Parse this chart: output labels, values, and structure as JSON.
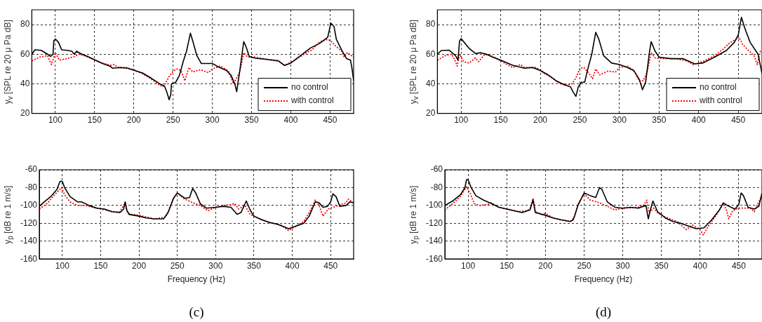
{
  "chart_data": [
    {
      "type": "line",
      "ylabel": "y$_{v}$ [SPL re 20 μ Pa dB]",
      "xlim": [
        70,
        480
      ],
      "ylim": [
        20,
        90
      ],
      "xticks": [
        100,
        150,
        200,
        250,
        300,
        350,
        400,
        450
      ],
      "yticks": [
        20,
        40,
        60,
        80
      ],
      "grid": true,
      "legend": "bottom right",
      "series": [
        {
          "name": "no control",
          "color": "#000000",
          "line_style": "solid",
          "x": [
            70,
            74,
            82,
            90,
            94,
            97,
            98,
            100,
            104,
            108,
            115,
            121,
            124,
            127,
            132,
            141,
            151,
            160,
            170,
            173,
            182,
            192,
            201,
            211,
            223,
            233,
            239,
            242,
            245,
            247,
            248,
            253,
            258,
            263,
            267,
            272,
            275,
            280,
            286,
            292,
            300,
            308,
            318,
            324,
            329,
            331,
            335,
            340,
            343,
            347,
            355,
            368,
            384,
            392,
            400,
            412,
            425,
            437,
            447,
            451,
            455,
            458,
            465,
            471,
            476,
            478,
            480
          ],
          "values": [
            60,
            63,
            62.6,
            60,
            58.5,
            60,
            69,
            70.3,
            68,
            63,
            62.6,
            62,
            60,
            62,
            60.5,
            58.5,
            56,
            53.7,
            51.8,
            50.5,
            51,
            50.5,
            49,
            47.3,
            43.5,
            40,
            38.4,
            34.4,
            29.2,
            32.7,
            40,
            40.8,
            45.6,
            55.3,
            61.8,
            74.2,
            69,
            59.4,
            53.7,
            53.7,
            53.7,
            51.3,
            49,
            45.6,
            39.2,
            34.7,
            49,
            68.5,
            65,
            58.5,
            57.3,
            56.6,
            55.6,
            52.4,
            54,
            58.9,
            64.2,
            67.4,
            71.5,
            81,
            78.7,
            70,
            62.6,
            57,
            56,
            50,
            42
          ]
        },
        {
          "name": "with control",
          "color": "#ff0000",
          "line_style": "dotted",
          "x": [
            70,
            80,
            90,
            95,
            98,
            100,
            105,
            115,
            125,
            130,
            140,
            150,
            160,
            170,
            175,
            180,
            190,
            200,
            210,
            220,
            230,
            237,
            240,
            245,
            250,
            255,
            260,
            265,
            270,
            275,
            285,
            295,
            300,
            310,
            320,
            327,
            335,
            340,
            345,
            355,
            370,
            385,
            392,
            402,
            417,
            427,
            437,
            447,
            451,
            458,
            465,
            468,
            472,
            480
          ],
          "values": [
            55.5,
            58,
            59,
            53,
            58,
            61,
            56,
            57,
            58.5,
            60,
            58.5,
            56,
            54,
            52.5,
            53,
            51,
            51,
            49.5,
            47,
            44,
            40,
            38,
            40,
            45,
            48.5,
            50,
            49,
            42,
            51,
            48,
            49.5,
            47.5,
            50,
            52,
            49,
            40,
            48,
            61,
            58,
            58,
            56.5,
            55,
            52.5,
            55,
            60,
            63,
            68.5,
            70,
            69,
            65,
            62,
            58,
            61,
            58
          ]
        }
      ]
    },
    {
      "type": "line",
      "ylabel": "y$_{v}$ [SPL re 20 μ Pa dB]",
      "xlim": [
        70,
        480
      ],
      "ylim": [
        20,
        90
      ],
      "xticks": [
        100,
        150,
        200,
        250,
        300,
        350,
        400,
        450
      ],
      "yticks": [
        20,
        40,
        60,
        80
      ],
      "grid": true,
      "legend": "bottom right",
      "series": [
        {
          "name": "no control",
          "color": "#000000",
          "line_style": "solid",
          "x": [
            70,
            75,
            85,
            93,
            96,
            98,
            100,
            110,
            118,
            125,
            132,
            140,
            150,
            165,
            180,
            190,
            200,
            210,
            220,
            230,
            238,
            242,
            245,
            248,
            252,
            256,
            260,
            265,
            270,
            274,
            280,
            290,
            300,
            310,
            318,
            325,
            329,
            333,
            338,
            340,
            345,
            350,
            365,
            380,
            395,
            405,
            420,
            435,
            445,
            450,
            454,
            458,
            465,
            475,
            480
          ],
          "values": [
            60,
            62.5,
            62.7,
            59,
            56,
            69,
            70.5,
            64,
            60.5,
            61,
            60,
            58,
            56,
            52.5,
            50.5,
            51,
            49,
            46,
            42,
            39.5,
            38,
            34,
            31.5,
            38,
            41,
            41,
            50,
            60,
            74.8,
            70,
            59,
            54,
            53,
            51,
            49,
            43,
            36,
            41,
            62,
            68.5,
            62,
            58,
            57,
            57,
            53.5,
            54,
            58,
            62.5,
            68,
            73,
            85,
            78,
            68,
            60,
            47
          ]
        },
        {
          "name": "with control",
          "color": "#ff0000",
          "line_style": "dotted",
          "x": [
            70,
            80,
            88,
            92,
            95,
            98,
            103,
            110,
            118,
            122,
            130,
            140,
            150,
            165,
            175,
            180,
            195,
            205,
            215,
            225,
            232,
            240,
            245,
            250,
            255,
            260,
            266,
            270,
            275,
            285,
            295,
            300,
            310,
            318,
            325,
            330,
            335,
            340,
            345,
            355,
            370,
            385,
            393,
            405,
            420,
            430,
            440,
            447,
            451,
            455,
            462,
            470,
            474,
            478,
            480
          ],
          "values": [
            56,
            59,
            60,
            56,
            52,
            60,
            55,
            54,
            57.5,
            55,
            60,
            58.5,
            55.5,
            51,
            53,
            51,
            51,
            47,
            44,
            40,
            39,
            40,
            44,
            50.5,
            51,
            48,
            43.5,
            50,
            46,
            48.5,
            48,
            51,
            52,
            49,
            42,
            42,
            48,
            61,
            57.5,
            57,
            57,
            55.5,
            53,
            55,
            59,
            63,
            68,
            70,
            71.5,
            67,
            63,
            59,
            53,
            62,
            62
          ]
        }
      ]
    },
    {
      "type": "line",
      "xlabel": "Frequency (Hz)",
      "ylabel": "y$_{p}$ [dB re 1 m/s]",
      "xlim": [
        70,
        480
      ],
      "ylim": [
        -160,
        -60
      ],
      "xticks": [
        100,
        150,
        200,
        250,
        300,
        350,
        400,
        450
      ],
      "yticks": [
        -160,
        -140,
        -120,
        -100,
        -80,
        -60
      ],
      "grid": true,
      "annotations": [
        "(c)"
      ],
      "series": [
        {
          "color": "#000000",
          "line_style": "solid",
          "x": [
            70,
            75,
            85,
            93,
            97,
            100,
            103,
            110,
            120,
            125,
            135,
            145,
            155,
            165,
            175,
            180,
            182,
            184,
            187,
            200,
            210,
            220,
            232,
            238,
            245,
            250,
            255,
            260,
            266,
            270,
            274,
            280,
            288,
            300,
            310,
            320,
            328,
            333,
            340,
            345,
            350,
            360,
            370,
            380,
            390,
            395,
            405,
            415,
            422,
            430,
            435,
            440,
            446,
            450,
            453,
            457,
            462,
            470,
            475,
            480
          ],
          "values": [
            -101,
            -97,
            -90,
            -82,
            -73,
            -73,
            -80,
            -90,
            -96,
            -96,
            -100,
            -103,
            -104,
            -107,
            -108,
            -104,
            -96,
            -105,
            -110,
            -112,
            -114,
            -115,
            -115,
            -108,
            -92,
            -86,
            -89,
            -92,
            -91,
            -81,
            -86,
            -98,
            -103,
            -102,
            -101,
            -102,
            -110,
            -108,
            -95,
            -105,
            -112,
            -116,
            -119,
            -121,
            -124,
            -126,
            -123,
            -120,
            -112,
            -96,
            -97,
            -102,
            -101,
            -96,
            -87,
            -90,
            -101,
            -100,
            -96,
            -97
          ]
        },
        {
          "color": "#ff0000",
          "line_style": "dotted",
          "x": [
            70,
            80,
            90,
            99,
            103,
            110,
            120,
            130,
            140,
            150,
            165,
            175,
            182,
            185,
            190,
            200,
            220,
            235,
            245,
            250,
            258,
            270,
            280,
            290,
            300,
            310,
            320,
            325,
            330,
            338,
            345,
            355,
            370,
            385,
            395,
            405,
            415,
            422,
            430,
            435,
            440,
            447,
            460,
            470,
            473,
            480
          ],
          "values": [
            -104,
            -98,
            -88,
            -80,
            -88,
            -96,
            -100,
            -100,
            -102,
            -104,
            -107,
            -107,
            -97,
            -108,
            -110,
            -111,
            -115,
            -113,
            -92,
            -86,
            -92,
            -97,
            -100,
            -106,
            -102,
            -100,
            -99,
            -98,
            -104,
            -100,
            -110,
            -114,
            -119,
            -122,
            -128,
            -123,
            -118,
            -108,
            -94,
            -100,
            -112,
            -104,
            -100,
            -97,
            -93,
            -97
          ]
        }
      ]
    },
    {
      "type": "line",
      "xlabel": "Frequency (Hz)",
      "ylabel": "y$_{p}$ [dB re 1 m/s]",
      "xlim": [
        70,
        480
      ],
      "ylim": [
        -160,
        -60
      ],
      "xticks": [
        100,
        150,
        200,
        250,
        300,
        350,
        400,
        450
      ],
      "yticks": [
        -160,
        -140,
        -120,
        -100,
        -80,
        -60
      ],
      "grid": true,
      "annotations": [
        "(d)"
      ],
      "series": [
        {
          "color": "#000000",
          "line_style": "solid",
          "x": [
            70,
            80,
            90,
            96,
            98,
            100,
            104,
            110,
            120,
            128,
            140,
            150,
            160,
            170,
            180,
            184,
            187,
            200,
            210,
            220,
            232,
            236,
            242,
            250,
            258,
            265,
            270,
            273,
            280,
            290,
            300,
            310,
            320,
            330,
            333,
            336,
            339,
            345,
            355,
            365,
            375,
            385,
            395,
            405,
            415,
            425,
            430,
            435,
            445,
            450,
            453,
            456,
            462,
            470,
            476,
            480
          ],
          "values": [
            -100,
            -95,
            -88,
            -80,
            -71,
            -71,
            -80,
            -89,
            -94,
            -97,
            -102,
            -104,
            -106,
            -108,
            -105,
            -94,
            -108,
            -111,
            -114,
            -116,
            -118,
            -116,
            -100,
            -86,
            -89,
            -91,
            -80,
            -82,
            -96,
            -102,
            -103,
            -102,
            -103,
            -100,
            -115,
            -104,
            -95,
            -107,
            -114,
            -118,
            -120,
            -123,
            -126,
            -125,
            -116,
            -105,
            -97,
            -100,
            -104,
            -99,
            -86,
            -89,
            -102,
            -104,
            -101,
            -86
          ]
        },
        {
          "color": "#ff0000",
          "line_style": "dotted",
          "x": [
            70,
            80,
            90,
            98,
            103,
            108,
            115,
            125,
            130,
            140,
            150,
            165,
            175,
            180,
            184,
            187,
            195,
            200,
            210,
            220,
            232,
            237,
            243,
            250,
            258,
            270,
            280,
            290,
            300,
            320,
            328,
            331,
            334,
            340,
            345,
            355,
            370,
            382,
            390,
            400,
            404,
            410,
            420,
            430,
            434,
            437,
            442,
            450,
            465,
            470,
            473,
            480
          ],
          "values": [
            -105,
            -98,
            -90,
            -79,
            -87,
            -98,
            -100,
            -99,
            -97,
            -102,
            -104,
            -107,
            -106,
            -104,
            -92,
            -107,
            -110,
            -109,
            -114,
            -116,
            -118,
            -114,
            -97,
            -87,
            -94,
            -97,
            -101,
            -105,
            -103,
            -102,
            -99,
            -94,
            -108,
            -103,
            -108,
            -113,
            -118,
            -127,
            -122,
            -127,
            -133,
            -124,
            -112,
            -98,
            -105,
            -115,
            -106,
            -103,
            -103,
            -107,
            -101,
            -89
          ]
        }
      ]
    }
  ]
}
